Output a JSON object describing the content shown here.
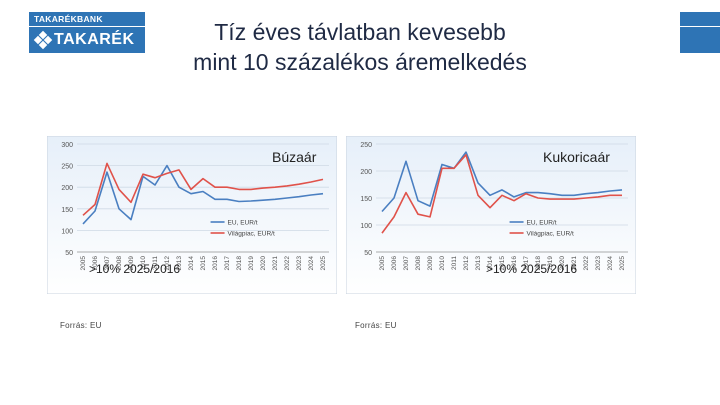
{
  "logo": {
    "top_text": "TAKARÉKBANK",
    "word": "TAKARÉK"
  },
  "slide": {
    "title_line1": "Tíz éves távlatban kevesebb",
    "title_line2": "mint 10 százalékos áremelkedés"
  },
  "colors": {
    "brand": "#2e74b5",
    "eu_line": "#4a7fc1",
    "world_line": "#e0524a"
  },
  "chart_data": [
    {
      "type": "line",
      "title": "Búzaár",
      "note": ">10% 2025/2016",
      "source": "Forrás: EU",
      "categories": [
        "2005",
        "2006",
        "2007",
        "2008",
        "2009",
        "2010",
        "2011",
        "2012",
        "2013",
        "2014",
        "2015",
        "2016",
        "2017",
        "2018",
        "2019",
        "2020",
        "2021",
        "2022",
        "2023",
        "2024",
        "2025"
      ],
      "y_ticks": [
        50,
        100,
        150,
        200,
        250,
        300
      ],
      "ylim": [
        50,
        300
      ],
      "series": [
        {
          "name": "EU, EUR/t",
          "values": [
            115,
            145,
            235,
            150,
            125,
            225,
            205,
            250,
            200,
            185,
            190,
            172,
            172,
            167,
            168,
            170,
            172,
            175,
            178,
            182,
            185
          ]
        },
        {
          "name": "Világpiac, EUR/t",
          "values": [
            135,
            160,
            255,
            195,
            165,
            230,
            222,
            232,
            240,
            195,
            220,
            200,
            200,
            195,
            195,
            198,
            200,
            203,
            207,
            212,
            218
          ]
        }
      ],
      "legend": "lower-right"
    },
    {
      "type": "line",
      "title": "Kukoricaár",
      "note": ">10% 2025/2016",
      "source": "Forrás: EU",
      "categories": [
        "2005",
        "2006",
        "2007",
        "2008",
        "2009",
        "2010",
        "2011",
        "2012",
        "2013",
        "2014",
        "2015",
        "2016",
        "2017",
        "2018",
        "2019",
        "2020",
        "2021",
        "2022",
        "2023",
        "2024",
        "2025"
      ],
      "y_ticks": [
        50,
        100,
        150,
        200,
        250
      ],
      "ylim": [
        50,
        250
      ],
      "series": [
        {
          "name": "EU, EUR/t",
          "values": [
            125,
            150,
            218,
            145,
            135,
            212,
            205,
            235,
            178,
            155,
            165,
            152,
            160,
            160,
            158,
            155,
            155,
            158,
            160,
            163,
            165
          ]
        },
        {
          "name": "Világpiac, EUR/t",
          "values": [
            85,
            115,
            160,
            120,
            115,
            205,
            205,
            230,
            155,
            132,
            155,
            145,
            158,
            150,
            148,
            148,
            148,
            150,
            152,
            155,
            155
          ]
        }
      ],
      "legend": "lower-right"
    }
  ]
}
